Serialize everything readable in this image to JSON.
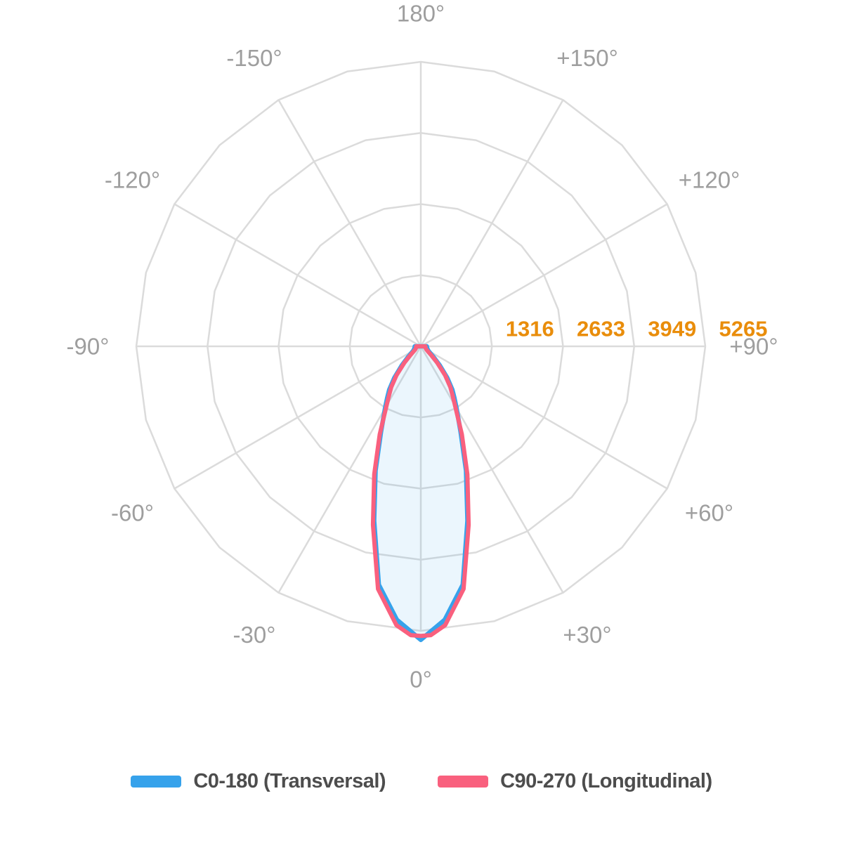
{
  "chart_data": {
    "type": "line",
    "projection": "polar",
    "description": "Photometric luminous intensity distribution polar diagram with C0-180 and C90-270 planes",
    "angle_axis": {
      "unit": "degrees",
      "zero_position": "bottom",
      "tick_labels": [
        {
          "angle": 0,
          "label": "0°"
        },
        {
          "angle": 30,
          "label": "+30°"
        },
        {
          "angle": 60,
          "label": "+60°"
        },
        {
          "angle": 90,
          "label": "+90°"
        },
        {
          "angle": 120,
          "label": "+120°"
        },
        {
          "angle": 150,
          "label": "+150°"
        },
        {
          "angle": 180,
          "label": "180°"
        },
        {
          "angle": -150,
          "label": "-150°"
        },
        {
          "angle": -120,
          "label": "-120°"
        },
        {
          "angle": -90,
          "label": "-90°"
        },
        {
          "angle": -60,
          "label": "-60°"
        },
        {
          "angle": -30,
          "label": "-30°"
        }
      ]
    },
    "radial_axis": {
      "rings": [
        {
          "value": 1316.25,
          "label": "1316"
        },
        {
          "value": 2632.5,
          "label": "2633"
        },
        {
          "value": 3948.75,
          "label": "3949"
        },
        {
          "value": 5265,
          "label": "5265"
        }
      ],
      "max_value": 5265,
      "label_color": "#E98D0B"
    },
    "grid": {
      "color": "#DBDBDB",
      "spoke_step_deg": 30,
      "ring_vertex_step_deg": 15
    },
    "angle_label_color": "#9E9E9E",
    "series": [
      {
        "name": "C0-180 (Transversal)",
        "color": "#36A2EB",
        "fill": "rgba(54,162,235,0.10)",
        "line_width": 6.5,
        "angles": [
          -90,
          -85,
          -80,
          -75,
          -70,
          -65,
          -60,
          -55,
          -50,
          -45,
          -40,
          -36,
          -33,
          -30,
          -25,
          -20,
          -15,
          -10,
          -5,
          -2,
          0,
          2,
          5,
          10,
          15,
          20,
          25,
          30,
          33,
          36,
          40,
          45,
          50,
          55,
          60,
          65,
          70,
          75,
          80,
          85,
          90
        ],
        "values": [
          110,
          112,
          115,
          120,
          128,
          140,
          160,
          205,
          305,
          490,
          760,
          990,
          1140,
          1320,
          1745,
          2450,
          3340,
          4480,
          5080,
          5280,
          5430,
          5280,
          5080,
          4480,
          3340,
          2450,
          1745,
          1320,
          1140,
          990,
          760,
          490,
          305,
          205,
          160,
          140,
          128,
          120,
          115,
          112,
          110
        ]
      },
      {
        "name": "C90-270 (Longitudinal)",
        "color": "#F9607E",
        "fill": "none",
        "line_width": 6,
        "angles": [
          -90,
          -85,
          -80,
          -75,
          -70,
          -65,
          -60,
          -55,
          -50,
          -45,
          -40,
          -36,
          -33,
          -30,
          -25,
          -20,
          -15,
          -10,
          -5,
          -2,
          0,
          2,
          5,
          10,
          15,
          20,
          25,
          30,
          33,
          36,
          40,
          45,
          50,
          55,
          60,
          65,
          70,
          75,
          80,
          85,
          90
        ],
        "values": [
          85,
          86,
          88,
          92,
          96,
          105,
          120,
          160,
          250,
          430,
          700,
          930,
          1080,
          1270,
          1800,
          2520,
          3420,
          4560,
          5180,
          5348,
          5360,
          5348,
          5180,
          4560,
          3420,
          2520,
          1800,
          1270,
          1080,
          930,
          700,
          430,
          250,
          160,
          120,
          105,
          96,
          92,
          88,
          86,
          85
        ]
      }
    ]
  },
  "legend": {
    "items": [
      {
        "label": "C0-180 (Transversal)",
        "color": "#36A2EB"
      },
      {
        "label": "C90-270 (Longitudinal)",
        "color": "#F9607E"
      }
    ]
  }
}
